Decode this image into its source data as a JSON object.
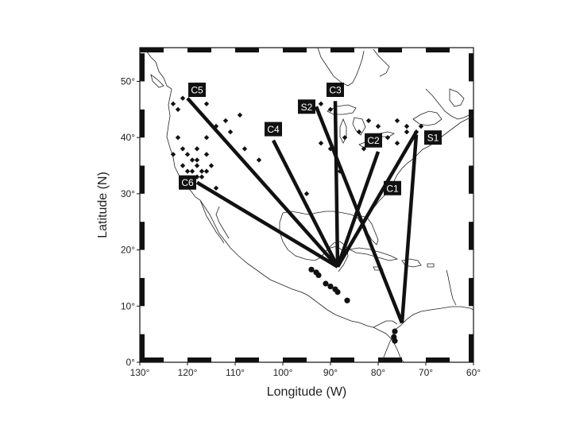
{
  "axes": {
    "xlabel": "Longitude (W)",
    "ylabel": "Latitude (N)",
    "xlim": [
      130,
      60
    ],
    "ylim": [
      0,
      56
    ],
    "x_ticks": [
      130,
      120,
      110,
      100,
      90,
      80,
      70,
      60
    ],
    "y_ticks": [
      0,
      10,
      20,
      30,
      40,
      50
    ],
    "x_tick_labels": [
      "130°",
      "120°",
      "110°",
      "100°",
      "90°",
      "80°",
      "70°",
      "60°"
    ],
    "y_tick_labels": [
      "0°",
      "10°",
      "20°",
      "30°",
      "40°",
      "50°"
    ]
  },
  "paths": [
    {
      "label": "C1",
      "from": [
        88.5,
        17.0
      ],
      "to": [
        72.0,
        41.0
      ],
      "label_at": [
        77.0,
        31.0
      ]
    },
    {
      "label": "C2",
      "from": [
        88.5,
        17.0
      ],
      "to": [
        80.0,
        37.5
      ],
      "label_at": [
        81.0,
        39.5
      ]
    },
    {
      "label": "C3",
      "from": [
        88.5,
        17.0
      ],
      "to": [
        89.0,
        46.5
      ],
      "label_at": [
        89.0,
        48.5
      ]
    },
    {
      "label": "C4",
      "from": [
        88.5,
        17.0
      ],
      "to": [
        102.0,
        39.5
      ],
      "label_at": [
        102.0,
        41.5
      ]
    },
    {
      "label": "C5",
      "from": [
        88.5,
        17.0
      ],
      "to": [
        120.0,
        47.0
      ],
      "label_at": [
        118.0,
        48.5
      ]
    },
    {
      "label": "C6",
      "from": [
        88.5,
        17.0
      ],
      "to": [
        118.0,
        32.0
      ],
      "label_at": [
        120.0,
        32.0
      ]
    },
    {
      "label": "S1",
      "from": [
        75.0,
        7.0
      ],
      "to": [
        72.0,
        40.5
      ],
      "label_at": [
        68.5,
        40.0
      ]
    },
    {
      "label": "S2",
      "from": [
        75.0,
        7.0
      ],
      "to": [
        93.0,
        45.5
      ],
      "label_at": [
        95.0,
        45.5
      ]
    }
  ],
  "western_us_stations": [
    [
      123,
      46
    ],
    [
      122,
      45
    ],
    [
      121,
      47
    ],
    [
      119,
      48
    ],
    [
      116,
      46
    ],
    [
      114,
      42
    ],
    [
      112,
      43
    ],
    [
      109,
      44
    ],
    [
      111,
      41
    ],
    [
      108,
      38
    ],
    [
      105,
      36
    ],
    [
      118,
      38
    ],
    [
      120,
      37
    ],
    [
      119,
      36
    ],
    [
      118,
      35
    ],
    [
      117,
      34
    ],
    [
      119,
      34
    ],
    [
      121,
      35
    ],
    [
      121,
      38
    ],
    [
      116,
      37
    ],
    [
      115,
      35
    ],
    [
      117,
      33
    ],
    [
      118,
      33
    ],
    [
      116,
      34
    ],
    [
      114,
      31
    ],
    [
      122,
      40
    ],
    [
      123,
      37
    ],
    [
      120,
      34
    ],
    [
      118,
      36
    ],
    [
      116,
      40
    ]
  ],
  "eastern_us_stations": [
    [
      92,
      46
    ],
    [
      90,
      45
    ],
    [
      82,
      43
    ],
    [
      80,
      42
    ],
    [
      76,
      43
    ],
    [
      74,
      42
    ],
    [
      72,
      41
    ],
    [
      71,
      42
    ],
    [
      78,
      40
    ],
    [
      76,
      39
    ],
    [
      84,
      41
    ],
    [
      87,
      40
    ],
    [
      90,
      38
    ],
    [
      92,
      39
    ],
    [
      95,
      30
    ],
    [
      83,
      38
    ],
    [
      74,
      41
    ],
    [
      88,
      34
    ]
  ],
  "central_america_events": [
    [
      94,
      16.5
    ],
    [
      93,
      16
    ],
    [
      92.5,
      15.5
    ],
    [
      91,
      14
    ],
    [
      90,
      13.5
    ],
    [
      89,
      13
    ],
    [
      88.5,
      12.5
    ],
    [
      86.5,
      11
    ],
    [
      76.5,
      5.5
    ],
    [
      76.7,
      4.5
    ],
    [
      76.5,
      3.8
    ]
  ]
}
